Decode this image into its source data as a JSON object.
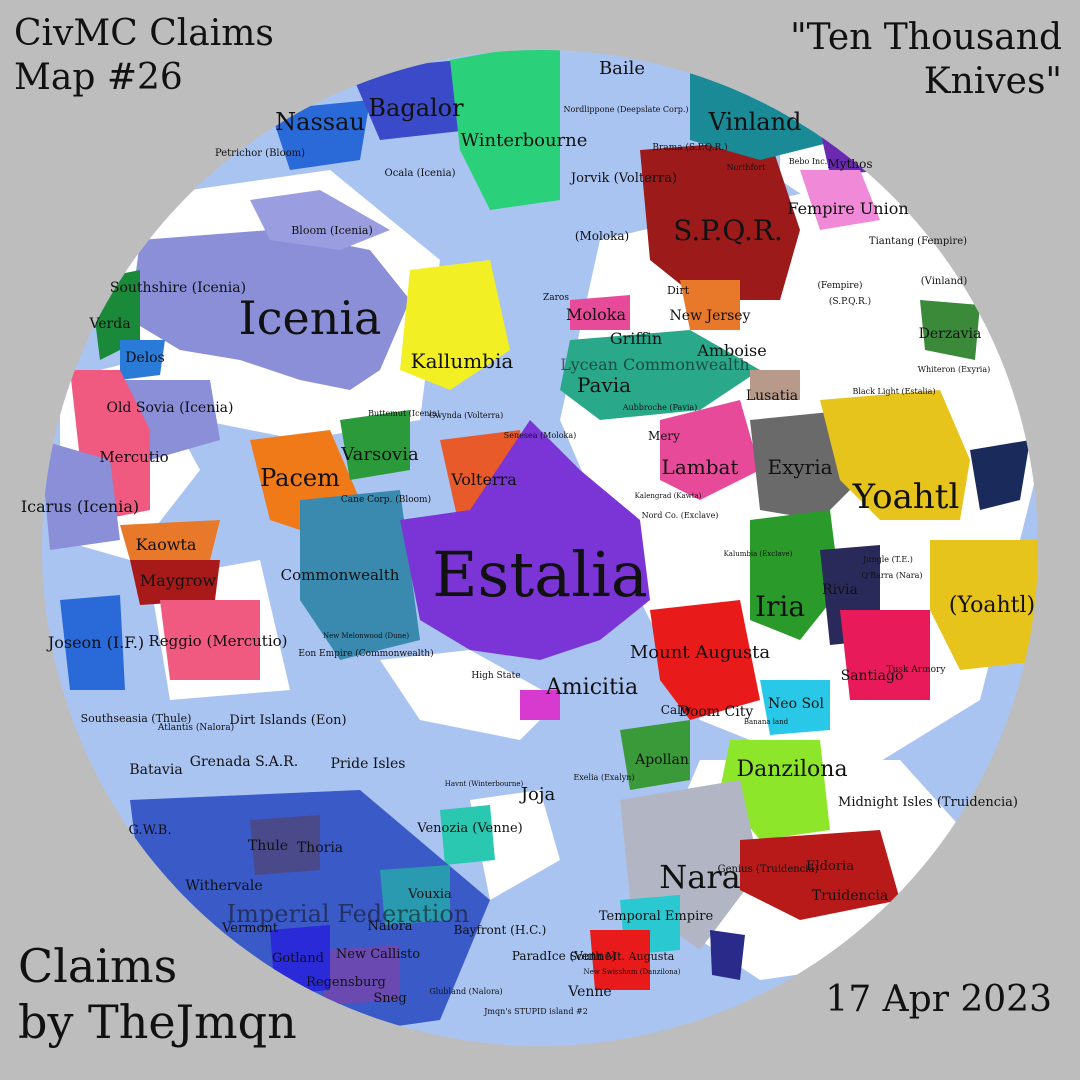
{
  "header": {
    "title_line1": "CivMC Claims",
    "title_line2": "Map #26",
    "subtitle_line1": "\"Ten Thousand",
    "subtitle_line2": "Knives\""
  },
  "footer": {
    "credit_line1": "Claims",
    "credit_line2": "by TheJmqn",
    "date": "17 Apr 2023"
  },
  "colors": {
    "background": "#bdbdbd",
    "ocean": "#aac4f2",
    "land": "#ffffff"
  },
  "claims": [
    {
      "id": "estalia",
      "label": "Estalia",
      "size": "xl",
      "color": "#7b35d6"
    },
    {
      "id": "icenia",
      "label": "Icenia",
      "size": "xl",
      "color": "#8a8fd8"
    },
    {
      "id": "yoahtl",
      "label": "Yoahtl",
      "size": "l",
      "color": "#e6c41c"
    },
    {
      "id": "yoahtl-2",
      "label": "(Yoahtl)",
      "size": "m",
      "color": "#e6c41c"
    },
    {
      "id": "spqr",
      "label": "S.P.Q.R.",
      "size": "l",
      "color": "#9c1a1a"
    },
    {
      "id": "nara",
      "label": "Nara",
      "size": "l",
      "color": "#b2b6c4"
    },
    {
      "id": "iria",
      "label": "Iria",
      "size": "l",
      "color": "#2a9a2a"
    },
    {
      "id": "danzilona",
      "label": "Danzilona",
      "size": "m",
      "color": "#8ee62a"
    },
    {
      "id": "pacem",
      "label": "Pacem",
      "size": "m",
      "color": "#f07a18"
    },
    {
      "id": "vinland",
      "label": "Vinland",
      "size": "m",
      "color": "#1a8a96"
    },
    {
      "id": "winterbourne",
      "label": "Winterbourne",
      "size": "m",
      "color": "#2ad07a"
    },
    {
      "id": "bagalor",
      "label": "Bagalor",
      "size": "m",
      "color": "#3a4ac8"
    },
    {
      "id": "nassau",
      "label": "Nassau",
      "size": "m",
      "color": "#2a6ad8"
    },
    {
      "id": "kallumbia",
      "label": "Kallumbia",
      "size": "m",
      "color": "#f2f024"
    },
    {
      "id": "varsovia",
      "label": "Varsovia",
      "size": "m",
      "color": "#2a9a3a"
    },
    {
      "id": "volterra",
      "label": "Volterra",
      "size": "s",
      "color": "#e85a2a"
    },
    {
      "id": "commonwealth",
      "label": "Commonwealth",
      "size": "s",
      "color": "#3a8ab0"
    },
    {
      "id": "amicitia",
      "label": "Amicitia",
      "size": "m",
      "color": "#d83ad0"
    },
    {
      "id": "lambat",
      "label": "Lambat",
      "size": "m",
      "color": "#e84a9a"
    },
    {
      "id": "exyria",
      "label": "Exyria",
      "size": "m",
      "color": "#6a6a6a"
    },
    {
      "id": "mount-augusta",
      "label": "Mount Augusta",
      "size": "m",
      "color": "#e81a1a"
    },
    {
      "id": "pavia",
      "label": "Pavia",
      "size": "m",
      "color": "#2aa88a"
    },
    {
      "id": "lycean",
      "label": "Lycean Commonwealth",
      "size": "m",
      "color": "#2aa88a"
    },
    {
      "id": "moloka",
      "label": "Moloka",
      "size": "s",
      "color": "#e84a9a"
    },
    {
      "id": "griffin",
      "label": "Griffin",
      "size": "s",
      "color": "#2aa88a"
    },
    {
      "id": "amboise",
      "label": "Amboise",
      "size": "s",
      "color": "#2aa88a"
    },
    {
      "id": "new-jersey",
      "label": "New Jersey",
      "size": "s",
      "color": "#e8782a"
    },
    {
      "id": "fempire",
      "label": "Fempire Union",
      "size": "s",
      "color": "#f08ad8"
    },
    {
      "id": "derzavia",
      "label": "Derzavia",
      "size": "s",
      "color": "#3a8a3a"
    },
    {
      "id": "lusatia",
      "label": "Lusatia",
      "size": "s",
      "color": "#b89a8a"
    },
    {
      "id": "mercutio",
      "label": "Mercutio",
      "size": "s",
      "color": "#f05a80"
    },
    {
      "id": "reggio",
      "label": "Reggio (Mercutio)",
      "size": "s",
      "color": "#f05a80"
    },
    {
      "id": "maygrow",
      "label": "Maygrow",
      "size": "s",
      "color": "#a81a1a"
    },
    {
      "id": "kaowta",
      "label": "Kaowta",
      "size": "s",
      "color": "#e8782a"
    },
    {
      "id": "joseon",
      "label": "Joseon (I.F.)",
      "size": "s",
      "color": "#2a6ad8"
    },
    {
      "id": "icarus",
      "label": "Icarus (Icenia)",
      "size": "s",
      "color": "#8a8fd8"
    },
    {
      "id": "old-sovia",
      "label": "Old Sovia (Icenia)",
      "size": "s",
      "color": "#8a8fd8"
    },
    {
      "id": "southshire",
      "label": "Southshire (Icenia)",
      "size": "s",
      "color": "#8a8fd8"
    },
    {
      "id": "verda",
      "label": "Verda",
      "size": "s",
      "color": "#1a8a3a"
    },
    {
      "id": "delos",
      "label": "Delos",
      "size": "s",
      "color": "#2a7ad8"
    },
    {
      "id": "santiago",
      "label": "Santiago",
      "size": "s",
      "color": "#e81a5a"
    },
    {
      "id": "midnight-isles",
      "label": "Midnight Isles (Truidencia)",
      "size": "s",
      "color": "#aac4f2"
    },
    {
      "id": "truidencia",
      "label": "Truidencia",
      "size": "s",
      "color": "#b81a1a"
    },
    {
      "id": "eldoria",
      "label": "Eldoria",
      "size": "s",
      "color": "#e81a1a"
    },
    {
      "id": "neo-sol",
      "label": "Neo Sol",
      "size": "s",
      "color": "#2ac8e8"
    },
    {
      "id": "apollan",
      "label": "Apollan",
      "size": "s",
      "color": "#3a9a3a"
    },
    {
      "id": "temporal-empire",
      "label": "Temporal Empire",
      "size": "s",
      "color": "#2ac8d0"
    },
    {
      "id": "joja",
      "label": "Joja",
      "size": "s",
      "color": "#aac4f2"
    },
    {
      "id": "venozia",
      "label": "Venozia (Venne)",
      "size": "s",
      "color": "#2ac8b0"
    },
    {
      "id": "imperial-federation",
      "label": "Imperial Federation",
      "size": "m",
      "color": "#3a5ac8"
    },
    {
      "id": "withervale",
      "label": "Withervale",
      "size": "s",
      "color": "#3a5ac8"
    },
    {
      "id": "thule",
      "label": "Thule",
      "size": "s",
      "color": "#4a4a8a"
    },
    {
      "id": "thoria",
      "label": "Thoria",
      "size": "s",
      "color": "#4a4a8a"
    },
    {
      "id": "gwb",
      "label": "G.W.B.",
      "size": "s",
      "color": "#2a3ab0"
    },
    {
      "id": "vermont",
      "label": "Vermont",
      "size": "s",
      "color": "#3a6ad8"
    },
    {
      "id": "gotland",
      "label": "Gotland",
      "size": "s",
      "color": "#2a2ad8"
    },
    {
      "id": "nalora",
      "label": "Nalora",
      "size": "s",
      "color": "#3a6ad8"
    },
    {
      "id": "vouxia",
      "label": "Vouxia",
      "size": "s",
      "color": "#2a9ab0"
    },
    {
      "id": "new-callisto",
      "label": "New Callisto",
      "size": "s",
      "color": "#3a8ad8"
    },
    {
      "id": "regensburg",
      "label": "Regensburg",
      "size": "s",
      "color": "#6a4ab0"
    },
    {
      "id": "sneg",
      "label": "Sneg",
      "size": "s",
      "color": "#3a3ab0"
    },
    {
      "id": "bayfront",
      "label": "Bayfront (H.C.)",
      "size": "s",
      "color": "#2a8ab0"
    },
    {
      "id": "paradice",
      "label": "ParadIce (Venne)",
      "size": "s",
      "color": "#e81a1a"
    },
    {
      "id": "venne",
      "label": "Venne",
      "size": "s",
      "color": "#e81a1a"
    },
    {
      "id": "south-mt-augusta",
      "label": "South Mt. Augusta",
      "size": "s",
      "color": "#e81a1a"
    },
    {
      "id": "rivia",
      "label": "Rivia",
      "size": "s",
      "color": "#2a2a5a"
    },
    {
      "id": "jorvik",
      "label": "Jorvik (Volterra)",
      "size": "s",
      "color": "#e85a2a"
    },
    {
      "id": "baile",
      "label": "Baile",
      "size": "s",
      "color": "#aac4f2"
    },
    {
      "id": "mythos",
      "label": "Mythos",
      "size": "s",
      "color": "#6a2ab0"
    }
  ],
  "places": [
    "Dirt Islands (Eon)",
    "Pride Isles",
    "Grenada S.A.R.",
    "Batavia",
    "Southseasia (Thule)",
    "Atlantis (Nalora)",
    "Bloom (Icenia)",
    "Petrichor (Bloom)",
    "Ocala (Icenia)",
    "Tiantang (Fempire)",
    "(Vinland)",
    "(Fempire)",
    "(S.P.Q.R.)",
    "(Moloka)",
    "Cane Corp. (Bloom)",
    "Buttemut (Icenia)",
    "Gwynda (Volterra)",
    "Senesea (Moloka)",
    "Nord Co. (Exclave)",
    "Kalumbia (Exclave)",
    "Jungle (T.E.)",
    "Q'Barra (Nara)",
    "Tusk Armory",
    "High State",
    "Eon Empire (Commonwealth)",
    "New Melonwood (Dune)",
    "Havnt (Winterbourne)",
    "Glubland (Nalora)",
    "Jmqn's STUPID island #2",
    "Lusatia",
    "Northfort",
    "Bebo Inc.",
    "Whiteron (Exyria)",
    "Black Light (Estalia)",
    "Aubbroche (Pavia)",
    "Mery",
    "Kalengrad (Kawta)",
    "Calw",
    "Doom City",
    "Banana land",
    "Genius (Truidencia)",
    "New Swissham (Danzilona)",
    "Exelia (Exalyn)",
    "Zaros",
    "Nordlippone (Deepslate Corp.)",
    "Brama (S.P.Q.R.)",
    "Dirt",
    "Kaowta"
  ]
}
